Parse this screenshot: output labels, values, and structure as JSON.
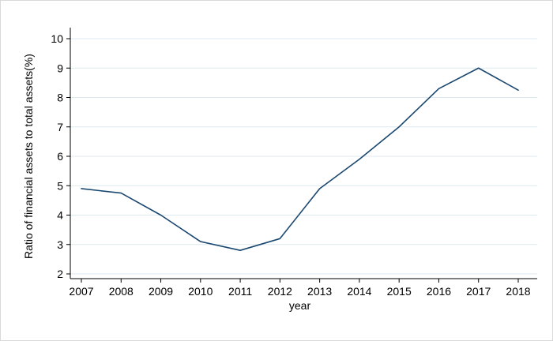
{
  "chart_data": {
    "type": "line",
    "title": "",
    "xlabel": "year",
    "ylabel": "Ratio of financial assets to total assets(%)",
    "x": [
      2007,
      2008,
      2009,
      2010,
      2011,
      2012,
      2013,
      2014,
      2015,
      2016,
      2017,
      2018
    ],
    "series": [
      {
        "name": "Ratio of financial assets to total assets(%)",
        "values": [
          4.9,
          4.75,
          4.0,
          3.1,
          2.8,
          3.2,
          4.9,
          5.9,
          7.0,
          8.3,
          9.0,
          8.25
        ]
      }
    ],
    "ylim": [
      2,
      10
    ],
    "yticks": [
      2,
      3,
      4,
      5,
      6,
      7,
      8,
      9,
      10
    ],
    "grid": "horizontal",
    "legend": "none",
    "line_color": "#1a476f",
    "grid_color": "#dce9ef",
    "axis_color": "#000000",
    "plot_bg": "#ffffff",
    "outer_bg": "#ffffff"
  }
}
